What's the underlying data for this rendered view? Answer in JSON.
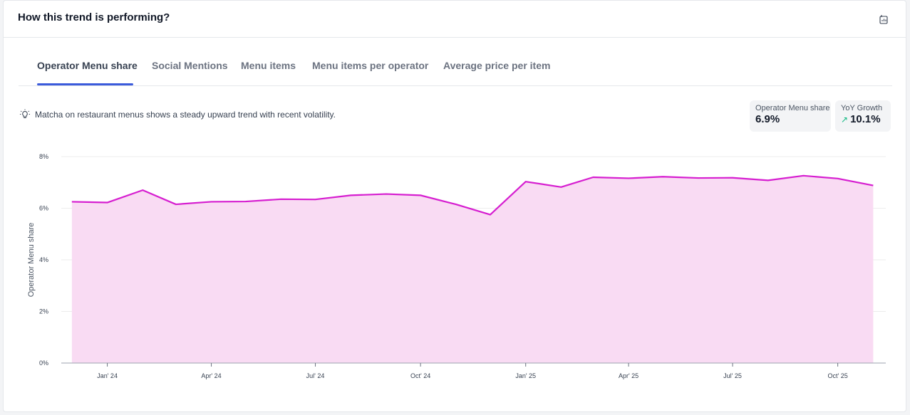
{
  "header": {
    "title": "How this trend is performing?",
    "export_icon": "export-chart-icon"
  },
  "tabs": [
    {
      "label": "Operator Menu share",
      "active": true
    },
    {
      "label": "Social Mentions",
      "active": false
    },
    {
      "label": "Menu items",
      "active": false
    },
    {
      "label": "Menu items per operator",
      "active": false
    },
    {
      "label": "Average price per item",
      "active": false
    }
  ],
  "insight": {
    "icon": "lightbulb-icon",
    "text": "Matcha on restaurant menus shows a steady upward trend with recent volatility."
  },
  "stats": {
    "share": {
      "label": "Operator Menu share",
      "value": "6.9%"
    },
    "growth": {
      "label": "YoY Growth",
      "value": "10.1%",
      "icon": "trend-up-icon",
      "color": "#10b981"
    }
  },
  "colors": {
    "line": "#d61ed0",
    "fill": "#f9dbf3",
    "active_tab": "#3b5bdb"
  },
  "chart_data": {
    "type": "area",
    "ylabel": "Operator Menu share",
    "ylim": [
      0,
      8
    ],
    "yticks": [
      "0%",
      "2%",
      "4%",
      "6%",
      "8%"
    ],
    "xticks": [
      "Jan' 24",
      "Apr' 24",
      "Jul' 24",
      "Oct' 24",
      "Jan' 25",
      "Apr' 25",
      "Jul' 25",
      "Oct' 25"
    ],
    "x": [
      "2023-12-01",
      "2024-01-01",
      "2024-02-01",
      "2024-03-01",
      "2024-04-01",
      "2024-05-01",
      "2024-06-01",
      "2024-07-01",
      "2024-08-01",
      "2024-09-01",
      "2024-10-01",
      "2024-11-01",
      "2024-12-01",
      "2025-01-01",
      "2025-02-01",
      "2025-03-01",
      "2025-04-01",
      "2025-05-01",
      "2025-06-01",
      "2025-07-01",
      "2025-08-01",
      "2025-09-01",
      "2025-10-01",
      "2025-11-01"
    ],
    "series": [
      {
        "values": [
          6.25,
          6.22,
          6.7,
          6.15,
          6.25,
          6.26,
          6.35,
          6.34,
          6.5,
          6.55,
          6.5,
          6.15,
          5.75,
          7.03,
          6.82,
          7.2,
          7.16,
          7.22,
          7.17,
          7.18,
          7.08,
          7.26,
          7.15,
          6.88
        ]
      }
    ],
    "grid": true
  }
}
